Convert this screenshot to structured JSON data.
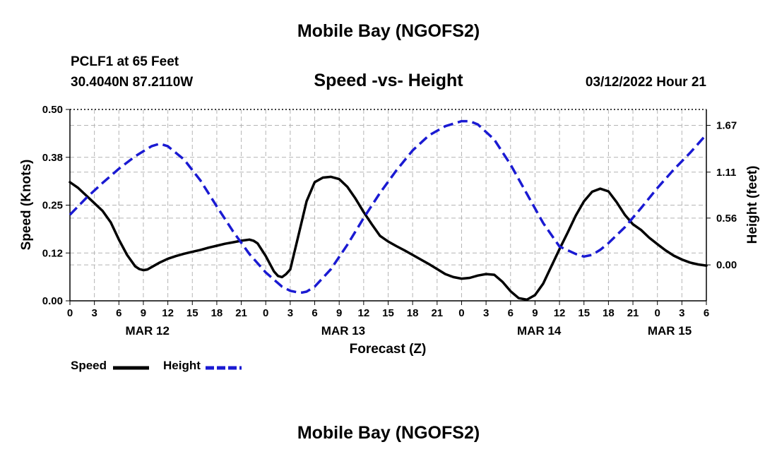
{
  "header": {
    "title": "Mobile Bay (NGOFS2)",
    "station": "PCLF1 at 65 Feet",
    "coords": "30.4040N  87.2110W",
    "subtitle": "Speed -vs- Height",
    "datetime": "03/12/2022 Hour 21"
  },
  "footer": {
    "title": "Mobile Bay (NGOFS2)"
  },
  "legend": {
    "speed_label": "Speed",
    "height_label": "Height"
  },
  "colors": {
    "speed": "#000000",
    "height": "#1a1ad2",
    "grid": "#b4b4b4"
  },
  "chart_data": {
    "type": "line",
    "xlabel": "Forecast (Z)",
    "ylabel_left": "Speed (Knots)",
    "ylabel_right": "Height (feet)",
    "xlim": [
      0,
      78
    ],
    "ylim_left": [
      0.0,
      0.5
    ],
    "ylim_right": [
      -0.43,
      1.86
    ],
    "yticks_left": [
      "0.00",
      "0.12",
      "0.25",
      "0.38",
      "0.50"
    ],
    "yticks_left_values": [
      0.0,
      0.125,
      0.25,
      0.375,
      0.5
    ],
    "yticks_right": [
      "0.00",
      "0.56",
      "1.11",
      "1.67"
    ],
    "yticks_right_values": [
      0.0,
      0.56,
      1.11,
      1.67
    ],
    "xticks_hours": [
      0,
      3,
      6,
      9,
      12,
      15,
      18,
      21,
      24,
      27,
      30,
      33,
      36,
      39,
      42,
      45,
      48,
      51,
      54,
      57,
      60,
      63,
      66,
      69,
      72,
      75,
      78
    ],
    "xtick_labels": [
      "0",
      "3",
      "6",
      "9",
      "12",
      "15",
      "18",
      "21",
      "0",
      "3",
      "6",
      "9",
      "12",
      "15",
      "18",
      "21",
      "0",
      "3",
      "6",
      "9",
      "12",
      "15",
      "18",
      "21",
      "0",
      "3",
      "6"
    ],
    "day_labels": [
      {
        "hour": 9.5,
        "label": "MAR 12"
      },
      {
        "hour": 33.5,
        "label": "MAR 13"
      },
      {
        "hour": 57.5,
        "label": "MAR 14"
      },
      {
        "hour": 73.5,
        "label": "MAR 15"
      }
    ],
    "series": [
      {
        "name": "Speed",
        "axis": "left",
        "style": "solid",
        "x": [
          0,
          1,
          2,
          3,
          4,
          5,
          6,
          7,
          8,
          8.5,
          9,
          9.5,
          10,
          11,
          12,
          13,
          14,
          15,
          16,
          17,
          18,
          19,
          20,
          21,
          22,
          22.5,
          23,
          24,
          25,
          25.5,
          26,
          26.5,
          27,
          28,
          29,
          30,
          31,
          32,
          33,
          34,
          35,
          36,
          37,
          38,
          39,
          40,
          41,
          42,
          43,
          44,
          45,
          46,
          47,
          48,
          49,
          50,
          51,
          52,
          53,
          54,
          55,
          56,
          57,
          58,
          59,
          60,
          61,
          62,
          63,
          64,
          65,
          66,
          67,
          68,
          69,
          70,
          71,
          72,
          73,
          74,
          75,
          76,
          77,
          78
        ],
        "values": [
          0.31,
          0.295,
          0.275,
          0.255,
          0.235,
          0.205,
          0.16,
          0.12,
          0.09,
          0.083,
          0.08,
          0.082,
          0.088,
          0.1,
          0.11,
          0.117,
          0.123,
          0.128,
          0.133,
          0.139,
          0.144,
          0.149,
          0.153,
          0.157,
          0.16,
          0.157,
          0.15,
          0.117,
          0.077,
          0.065,
          0.062,
          0.07,
          0.082,
          0.17,
          0.26,
          0.31,
          0.322,
          0.324,
          0.318,
          0.298,
          0.267,
          0.232,
          0.2,
          0.17,
          0.155,
          0.143,
          0.132,
          0.12,
          0.108,
          0.096,
          0.083,
          0.07,
          0.062,
          0.058,
          0.06,
          0.066,
          0.07,
          0.068,
          0.05,
          0.025,
          0.007,
          0.003,
          0.015,
          0.045,
          0.09,
          0.135,
          0.178,
          0.223,
          0.26,
          0.285,
          0.293,
          0.286,
          0.258,
          0.225,
          0.2,
          0.185,
          0.165,
          0.148,
          0.132,
          0.118,
          0.108,
          0.1,
          0.095,
          0.092
        ]
      },
      {
        "name": "Height",
        "axis": "right",
        "style": "dashed",
        "x": [
          0,
          2,
          4,
          6,
          8,
          10,
          11,
          12,
          14,
          16,
          18,
          20,
          22,
          24,
          26,
          27,
          28,
          28.5,
          29,
          30,
          32,
          34,
          36,
          38,
          40,
          42,
          44,
          46,
          48,
          49,
          50,
          52,
          54,
          56,
          58,
          60,
          62,
          63,
          64,
          65,
          66,
          68,
          70,
          72,
          74,
          76,
          78
        ],
        "values": [
          0.6,
          0.8,
          0.98,
          1.15,
          1.3,
          1.42,
          1.45,
          1.42,
          1.26,
          1.01,
          0.7,
          0.4,
          0.13,
          -0.09,
          -0.26,
          -0.31,
          -0.33,
          -0.33,
          -0.32,
          -0.26,
          -0.05,
          0.24,
          0.56,
          0.86,
          1.13,
          1.37,
          1.55,
          1.66,
          1.72,
          1.72,
          1.68,
          1.5,
          1.2,
          0.85,
          0.5,
          0.22,
          0.13,
          0.1,
          0.12,
          0.18,
          0.26,
          0.45,
          0.68,
          0.92,
          1.14,
          1.34,
          1.56
        ]
      }
    ]
  }
}
